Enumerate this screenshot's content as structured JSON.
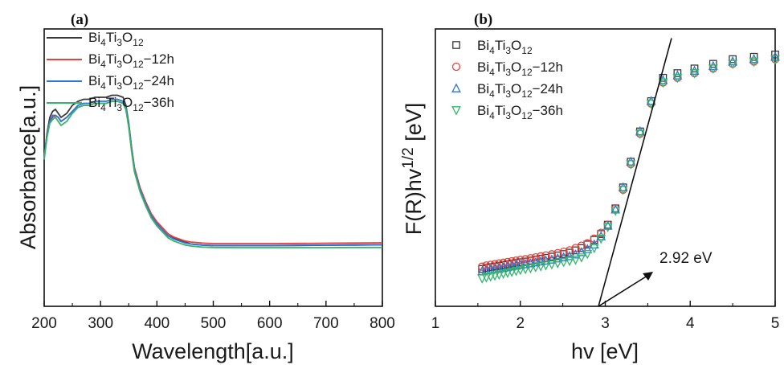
{
  "chart_data": [
    {
      "panel": "(a)",
      "type": "line",
      "xlabel": "Wavelength[a.u.]",
      "ylabel": "Absorbance[a.u.]",
      "xlim": [
        200,
        800
      ],
      "xticks": [
        200,
        300,
        400,
        500,
        600,
        700,
        800
      ],
      "grid": false,
      "legend_position": "top-left",
      "series": [
        {
          "name": "Bi4Ti3O12",
          "color": "#3a3a3a",
          "x": [
            200,
            205,
            210,
            215,
            220,
            225,
            230,
            240,
            250,
            260,
            270,
            280,
            290,
            300,
            310,
            320,
            330,
            340,
            345,
            350,
            355,
            360,
            370,
            380,
            390,
            400,
            410,
            420,
            430,
            440,
            450,
            460,
            480,
            500,
            550,
            600,
            650,
            700,
            750,
            800
          ],
          "y": [
            0.5,
            0.62,
            0.7,
            0.73,
            0.74,
            0.72,
            0.7,
            0.72,
            0.76,
            0.78,
            0.79,
            0.79,
            0.8,
            0.8,
            0.8,
            0.81,
            0.81,
            0.8,
            0.76,
            0.67,
            0.55,
            0.45,
            0.35,
            0.28,
            0.22,
            0.18,
            0.15,
            0.12,
            0.1,
            0.09,
            0.08,
            0.07,
            0.065,
            0.062,
            0.062,
            0.062,
            0.063,
            0.064,
            0.065,
            0.066
          ]
        },
        {
          "name": "Bi4Ti3O12-12h",
          "color": "#e8413c",
          "x": [
            200,
            205,
            210,
            215,
            220,
            225,
            230,
            240,
            250,
            260,
            270,
            280,
            290,
            300,
            310,
            320,
            330,
            340,
            345,
            350,
            355,
            360,
            370,
            380,
            390,
            400,
            410,
            420,
            430,
            440,
            450,
            460,
            480,
            500,
            550,
            600,
            650,
            700,
            750,
            800
          ],
          "y": [
            0.5,
            0.61,
            0.68,
            0.7,
            0.71,
            0.7,
            0.68,
            0.7,
            0.73,
            0.75,
            0.76,
            0.76,
            0.77,
            0.77,
            0.77,
            0.78,
            0.78,
            0.77,
            0.74,
            0.66,
            0.55,
            0.45,
            0.35,
            0.28,
            0.22,
            0.18,
            0.15,
            0.12,
            0.105,
            0.095,
            0.085,
            0.08,
            0.075,
            0.072,
            0.072,
            0.072,
            0.073,
            0.074,
            0.075,
            0.076
          ]
        },
        {
          "name": "Bi4Ti3O12-24h",
          "color": "#2f74d8",
          "x": [
            200,
            205,
            210,
            215,
            220,
            225,
            230,
            240,
            250,
            260,
            270,
            280,
            290,
            300,
            310,
            320,
            330,
            340,
            345,
            350,
            355,
            360,
            370,
            380,
            390,
            400,
            410,
            420,
            430,
            440,
            450,
            460,
            480,
            500,
            550,
            600,
            650,
            700,
            750,
            800
          ],
          "y": [
            0.5,
            0.61,
            0.68,
            0.71,
            0.71,
            0.7,
            0.68,
            0.7,
            0.73,
            0.76,
            0.77,
            0.77,
            0.78,
            0.78,
            0.78,
            0.79,
            0.79,
            0.78,
            0.75,
            0.66,
            0.54,
            0.44,
            0.34,
            0.27,
            0.21,
            0.17,
            0.14,
            0.11,
            0.095,
            0.085,
            0.075,
            0.07,
            0.065,
            0.063,
            0.063,
            0.063,
            0.064,
            0.065,
            0.066,
            0.067
          ]
        },
        {
          "name": "Bi4Ti3O12-36h",
          "color": "#33b56a",
          "x": [
            200,
            205,
            210,
            215,
            220,
            225,
            230,
            240,
            250,
            260,
            270,
            280,
            290,
            300,
            310,
            320,
            330,
            340,
            345,
            350,
            355,
            360,
            370,
            380,
            390,
            400,
            410,
            420,
            430,
            440,
            450,
            460,
            480,
            500,
            550,
            600,
            650,
            700,
            750,
            800
          ],
          "y": [
            0.49,
            0.6,
            0.67,
            0.69,
            0.7,
            0.68,
            0.66,
            0.68,
            0.72,
            0.75,
            0.76,
            0.76,
            0.77,
            0.77,
            0.77,
            0.78,
            0.78,
            0.77,
            0.74,
            0.65,
            0.53,
            0.43,
            0.33,
            0.26,
            0.2,
            0.16,
            0.13,
            0.1,
            0.085,
            0.075,
            0.065,
            0.06,
            0.055,
            0.053,
            0.052,
            0.052,
            0.052,
            0.052,
            0.053,
            0.053
          ]
        }
      ]
    },
    {
      "panel": "(b)",
      "type": "scatter",
      "xlabel": "hv [eV]",
      "ylabel": "F(R)hv1/2 [eV]",
      "xlim": [
        1,
        5
      ],
      "xticks": [
        1,
        2,
        3,
        4,
        5
      ],
      "grid": false,
      "legend_position": "top-left",
      "annotation": {
        "text": "2.92 eV",
        "x": 2.92
      },
      "fit_line": {
        "x1": 2.92,
        "y1": 0.0,
        "x2": 3.78,
        "y2": 1.15
      },
      "series": [
        {
          "name": "Bi4Ti3O12",
          "marker": "square",
          "color": "#3a3a3a",
          "x": [
            1.55,
            1.6,
            1.65,
            1.7,
            1.75,
            1.8,
            1.85,
            1.9,
            1.95,
            2.0,
            2.06,
            2.12,
            2.18,
            2.24,
            2.3,
            2.37,
            2.44,
            2.51,
            2.58,
            2.65,
            2.72,
            2.79,
            2.87,
            2.95,
            3.03,
            3.12,
            3.21,
            3.3,
            3.41,
            3.54,
            3.68,
            3.85,
            4.05,
            4.27,
            4.5,
            4.75,
            5.0
          ],
          "y": [
            0.16,
            0.165,
            0.168,
            0.171,
            0.174,
            0.177,
            0.18,
            0.183,
            0.186,
            0.189,
            0.192,
            0.196,
            0.2,
            0.204,
            0.208,
            0.213,
            0.218,
            0.224,
            0.23,
            0.24,
            0.25,
            0.265,
            0.285,
            0.31,
            0.35,
            0.42,
            0.51,
            0.62,
            0.75,
            0.88,
            0.98,
            1.0,
            1.02,
            1.04,
            1.06,
            1.07,
            1.08
          ]
        },
        {
          "name": "Bi4Ti3O12-12h",
          "marker": "circle",
          "color": "#e8413c",
          "x": [
            1.55,
            1.6,
            1.65,
            1.7,
            1.75,
            1.8,
            1.85,
            1.9,
            1.95,
            2.0,
            2.06,
            2.12,
            2.18,
            2.24,
            2.3,
            2.37,
            2.44,
            2.51,
            2.58,
            2.65,
            2.72,
            2.79,
            2.87,
            2.95,
            3.03,
            3.12,
            3.21,
            3.3,
            3.41,
            3.54,
            3.68,
            3.85,
            4.05,
            4.27,
            4.5,
            4.75,
            5.0
          ],
          "y": [
            0.17,
            0.175,
            0.178,
            0.181,
            0.184,
            0.187,
            0.19,
            0.193,
            0.196,
            0.199,
            0.202,
            0.206,
            0.21,
            0.214,
            0.218,
            0.223,
            0.228,
            0.234,
            0.24,
            0.25,
            0.26,
            0.27,
            0.29,
            0.315,
            0.35,
            0.42,
            0.5,
            0.61,
            0.74,
            0.87,
            0.96,
            0.98,
            1.0,
            1.02,
            1.04,
            1.05,
            1.06
          ]
        },
        {
          "name": "Bi4Ti3O12-24h",
          "marker": "triangle-up",
          "color": "#2f74d8",
          "x": [
            1.55,
            1.6,
            1.65,
            1.7,
            1.75,
            1.8,
            1.85,
            1.9,
            1.95,
            2.0,
            2.06,
            2.12,
            2.18,
            2.24,
            2.3,
            2.37,
            2.44,
            2.51,
            2.58,
            2.65,
            2.72,
            2.79,
            2.87,
            2.95,
            3.03,
            3.12,
            3.21,
            3.3,
            3.41,
            3.54,
            3.68,
            3.85,
            4.05,
            4.27,
            4.5,
            4.75,
            5.0
          ],
          "y": [
            0.15,
            0.153,
            0.156,
            0.159,
            0.162,
            0.165,
            0.168,
            0.171,
            0.174,
            0.177,
            0.18,
            0.184,
            0.188,
            0.192,
            0.196,
            0.2,
            0.205,
            0.21,
            0.215,
            0.222,
            0.232,
            0.245,
            0.265,
            0.3,
            0.345,
            0.415,
            0.51,
            0.62,
            0.75,
            0.88,
            0.97,
            0.99,
            1.01,
            1.03,
            1.05,
            1.06,
            1.07
          ]
        },
        {
          "name": "Bi4Ti3O12-36h",
          "marker": "triangle-down",
          "color": "#33b56a",
          "x": [
            1.55,
            1.6,
            1.65,
            1.7,
            1.75,
            1.8,
            1.85,
            1.9,
            1.95,
            2.0,
            2.06,
            2.12,
            2.18,
            2.24,
            2.3,
            2.37,
            2.44,
            2.51,
            2.58,
            2.65,
            2.72,
            2.79,
            2.87,
            2.95,
            3.03,
            3.12,
            3.21,
            3.3,
            3.41,
            3.54,
            3.68,
            3.85,
            4.05,
            4.27,
            4.5,
            4.75,
            5.0
          ],
          "y": [
            0.12,
            0.124,
            0.128,
            0.132,
            0.136,
            0.14,
            0.144,
            0.148,
            0.152,
            0.156,
            0.16,
            0.164,
            0.168,
            0.172,
            0.176,
            0.18,
            0.185,
            0.19,
            0.195,
            0.2,
            0.21,
            0.225,
            0.25,
            0.29,
            0.34,
            0.41,
            0.5,
            0.61,
            0.74,
            0.87,
            0.96,
            0.98,
            1.0,
            1.02,
            1.04,
            1.05,
            1.06
          ]
        }
      ]
    }
  ],
  "legend_labels": [
    {
      "base": "Bi",
      "s1": "4",
      "mid": "Ti",
      "s2": "3",
      "mid2": "O",
      "s3": "12",
      "tail": ""
    },
    {
      "base": "Bi",
      "s1": "4",
      "mid": "Ti",
      "s2": "3",
      "mid2": "O",
      "s3": "12",
      "tail": "−12h"
    },
    {
      "base": "Bi",
      "s1": "4",
      "mid": "Ti",
      "s2": "3",
      "mid2": "O",
      "s3": "12",
      "tail": "−24h"
    },
    {
      "base": "Bi",
      "s1": "4",
      "mid": "Ti",
      "s2": "3",
      "mid2": "O",
      "s3": "12",
      "tail": "−36h"
    }
  ],
  "ylabel_b_parts": {
    "pre": "F(R)hv",
    "sup": "1/2",
    "post": " [eV]"
  }
}
